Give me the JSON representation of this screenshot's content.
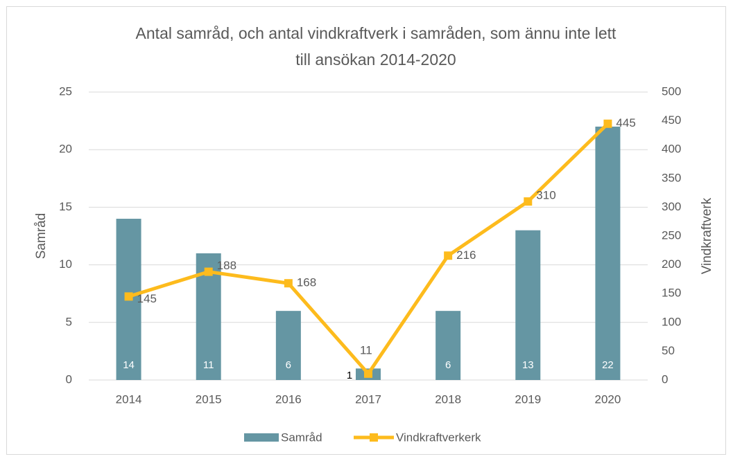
{
  "chart_data": {
    "type": "bar",
    "title": [
      "Antal samråd, och antal vindkraftverk i samråden, som ännu inte lett",
      "till ansökan 2014-2020"
    ],
    "categories": [
      "2014",
      "2015",
      "2016",
      "2017",
      "2018",
      "2019",
      "2020"
    ],
    "ylabel": "Samråd",
    "y2label": "Vindkraftverk",
    "ylim": [
      0,
      25
    ],
    "yticks": [
      0,
      5,
      10,
      15,
      20,
      25
    ],
    "y2lim": [
      0,
      500
    ],
    "y2ticks": [
      0,
      50,
      100,
      150,
      200,
      250,
      300,
      350,
      400,
      450,
      500
    ],
    "grid": true,
    "legend": "bottom",
    "series": [
      {
        "name": "Samråd",
        "type": "bar",
        "color": "#6596a3",
        "values": [
          14,
          11,
          6,
          1,
          6,
          13,
          22
        ]
      },
      {
        "name": "Vindkraftverkerk",
        "type": "line",
        "axis": "y2",
        "color": "#fdbb1d",
        "values": [
          145,
          188,
          168,
          11,
          216,
          310,
          445
        ]
      }
    ]
  }
}
